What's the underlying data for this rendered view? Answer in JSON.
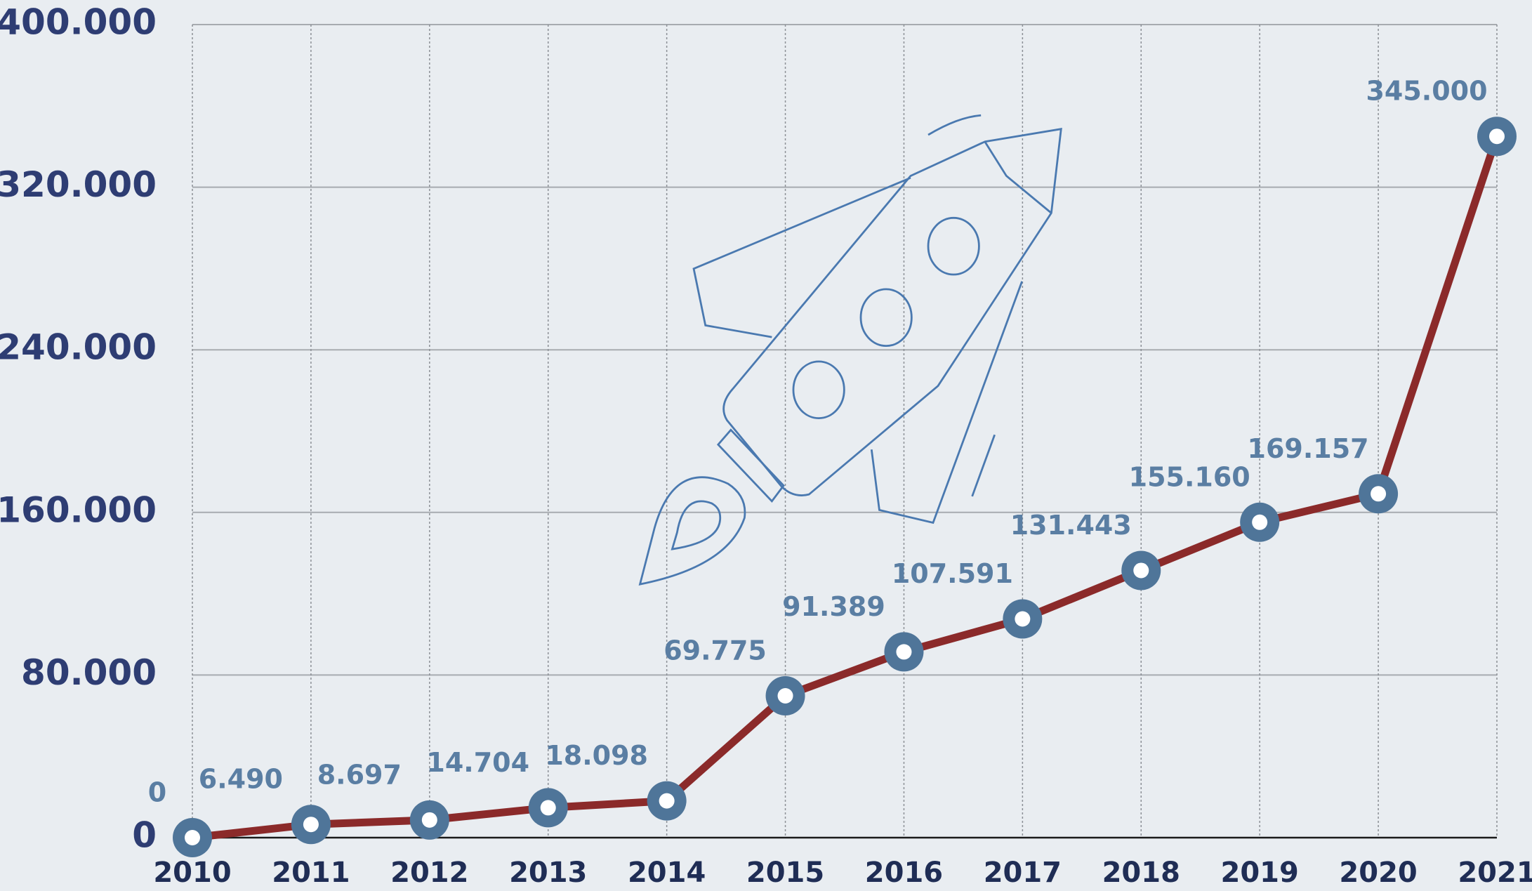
{
  "chart_data": {
    "type": "line",
    "categories": [
      "2010",
      "2011",
      "2012",
      "2013",
      "2014",
      "2015",
      "2016",
      "2017",
      "2018",
      "2019",
      "2020",
      "2021"
    ],
    "values": [
      0,
      6490,
      8697,
      14704,
      18098,
      69775,
      91389,
      107591,
      131443,
      155160,
      169157,
      345000
    ],
    "value_labels": [
      "0",
      "6.490",
      "8.697",
      "14.704",
      "18.098",
      "69.775",
      "91.389",
      "107.591",
      "131.443",
      "155.160",
      "169.157",
      "345.000"
    ],
    "color": "#8b2a2a",
    "marker_color": "#4f7599",
    "ylim": [
      0,
      400000
    ],
    "yticks": [
      0,
      {
        "value": 80000,
        "label": "80.000"
      },
      {
        "value": 160000,
        "label": "160.000"
      },
      {
        "value": 240000,
        "label": "240.000"
      },
      {
        "value": 320000,
        "label": "320.000"
      },
      {
        "value": 400000,
        "label": "400.000"
      }
    ],
    "grid": true
  }
}
